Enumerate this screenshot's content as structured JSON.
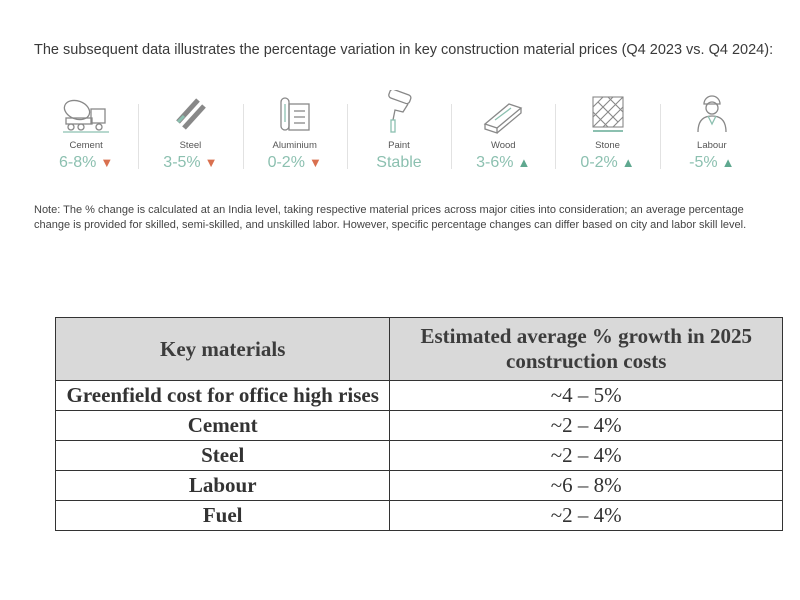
{
  "intro": "The subsequent data illustrates the percentage variation in key construction material prices (Q4 2023 vs. Q4 2024):",
  "colors": {
    "down": "#d9704f",
    "up": "#5fa88f",
    "value": "#8cc0b0"
  },
  "materials": [
    {
      "label": "Cement",
      "value": "6-8%",
      "trend": "▼",
      "icon": "cement-mixer-icon"
    },
    {
      "label": "Steel",
      "value": "3-5%",
      "trend": "▼",
      "icon": "steel-rods-icon"
    },
    {
      "label": "Aluminium",
      "value": "0-2%",
      "trend": "▼",
      "icon": "aluminium-roll-icon"
    },
    {
      "label": "Paint",
      "value": "Stable",
      "trend": "",
      "icon": "paint-roller-icon"
    },
    {
      "label": "Wood",
      "value": "3-6%",
      "trend": "▲",
      "icon": "wood-plank-icon"
    },
    {
      "label": "Stone",
      "value": "0-2%",
      "trend": "▲",
      "icon": "stone-tile-icon"
    },
    {
      "label": "Labour",
      "value": "-5%",
      "trend": "▲",
      "icon": "worker-icon"
    }
  ],
  "note": "Note: The % change is calculated at an India level, taking respective material prices across major cities into consideration; an average percentage change is provided for skilled, semi-skilled, and unskilled labor. However, specific percentage changes can differ based on city and labor skill level.",
  "table": {
    "headers": [
      "Key materials",
      "Estimated average % growth in 2025 construction costs"
    ],
    "rows": [
      [
        "Greenfield cost for office high rises",
        "~4 – 5%"
      ],
      [
        "Cement",
        "~2 – 4%"
      ],
      [
        "Steel",
        "~2 – 4%"
      ],
      [
        "Labour",
        "~6 – 8%"
      ],
      [
        "Fuel",
        "~2 – 4%"
      ]
    ]
  }
}
